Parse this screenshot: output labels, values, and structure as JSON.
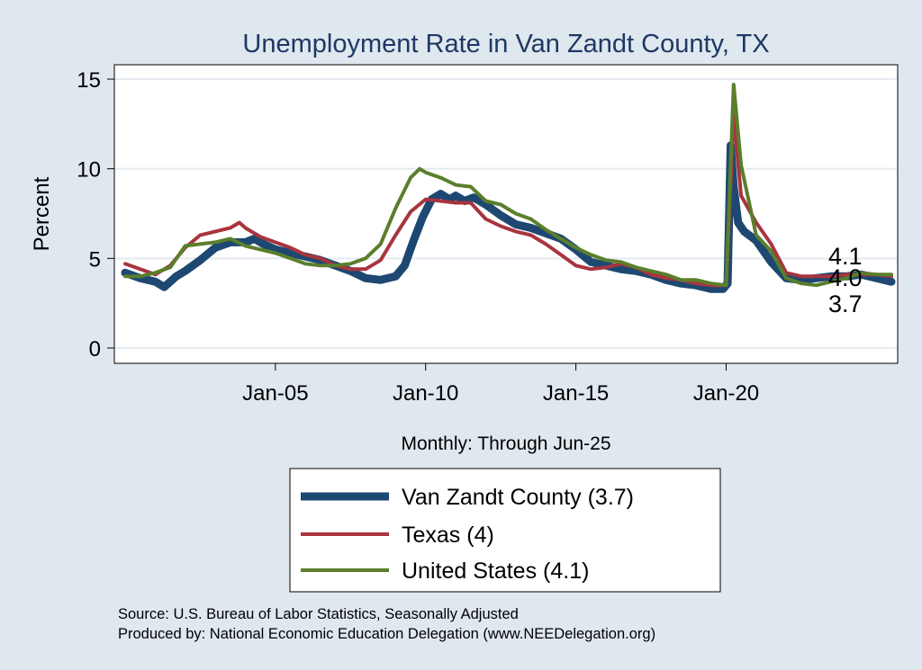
{
  "chart_data": {
    "type": "line",
    "title": "Unemployment Rate in Van Zandt  County, TX",
    "ylabel": "Percent",
    "xlabel": "Monthly: Through Jun-25",
    "ylim": [
      0,
      15
    ],
    "yticks": [
      0,
      5,
      10,
      15
    ],
    "xticks": [
      {
        "label": "Jan-05",
        "x": 2005.0
      },
      {
        "label": "Jan-10",
        "x": 2010.0
      },
      {
        "label": "Jan-15",
        "x": 2015.0
      },
      {
        "label": "Jan-20",
        "x": 2020.0
      }
    ],
    "x_range": [
      2000.0,
      2025.5
    ],
    "grid": true,
    "legend_position": "bottom",
    "end_labels": [
      "4.1",
      "4.0",
      "3.7"
    ],
    "series": [
      {
        "name": "Van Zandt  County (3.7)",
        "color": "#1d4872",
        "width": 9,
        "points": [
          [
            2000.0,
            4.2
          ],
          [
            2000.5,
            3.9
          ],
          [
            2001.0,
            3.7
          ],
          [
            2001.3,
            3.4
          ],
          [
            2001.7,
            4.0
          ],
          [
            2002.0,
            4.3
          ],
          [
            2002.5,
            4.9
          ],
          [
            2003.0,
            5.6
          ],
          [
            2003.5,
            5.9
          ],
          [
            2004.0,
            5.9
          ],
          [
            2004.3,
            6.1
          ],
          [
            2004.6,
            5.8
          ],
          [
            2005.0,
            5.5
          ],
          [
            2005.5,
            5.3
          ],
          [
            2006.0,
            5.1
          ],
          [
            2006.5,
            4.9
          ],
          [
            2007.0,
            4.6
          ],
          [
            2007.5,
            4.3
          ],
          [
            2008.0,
            3.9
          ],
          [
            2008.5,
            3.8
          ],
          [
            2009.0,
            4.0
          ],
          [
            2009.3,
            4.6
          ],
          [
            2009.6,
            6.0
          ],
          [
            2009.9,
            7.3
          ],
          [
            2010.2,
            8.3
          ],
          [
            2010.5,
            8.6
          ],
          [
            2010.8,
            8.3
          ],
          [
            2011.0,
            8.5
          ],
          [
            2011.3,
            8.2
          ],
          [
            2011.6,
            8.4
          ],
          [
            2012.0,
            8.0
          ],
          [
            2012.5,
            7.4
          ],
          [
            2013.0,
            6.9
          ],
          [
            2013.5,
            6.7
          ],
          [
            2014.0,
            6.4
          ],
          [
            2014.5,
            6.1
          ],
          [
            2015.0,
            5.5
          ],
          [
            2015.5,
            4.8
          ],
          [
            2016.0,
            4.6
          ],
          [
            2016.5,
            4.4
          ],
          [
            2017.0,
            4.3
          ],
          [
            2017.5,
            4.1
          ],
          [
            2018.0,
            3.8
          ],
          [
            2018.5,
            3.6
          ],
          [
            2019.0,
            3.5
          ],
          [
            2019.5,
            3.3
          ],
          [
            2019.9,
            3.3
          ],
          [
            2020.05,
            3.6
          ],
          [
            2020.15,
            11.3
          ],
          [
            2020.25,
            9.0
          ],
          [
            2020.4,
            7.0
          ],
          [
            2020.6,
            6.5
          ],
          [
            2021.0,
            6.0
          ],
          [
            2021.5,
            4.8
          ],
          [
            2022.0,
            3.9
          ],
          [
            2022.5,
            3.8
          ],
          [
            2023.0,
            3.9
          ],
          [
            2023.5,
            4.0
          ],
          [
            2024.0,
            4.0
          ],
          [
            2024.5,
            4.1
          ],
          [
            2025.0,
            3.9
          ],
          [
            2025.5,
            3.7
          ]
        ]
      },
      {
        "name": "Texas (4)",
        "color": "#a8343e",
        "width": 4,
        "points": [
          [
            2000.0,
            4.7
          ],
          [
            2000.5,
            4.4
          ],
          [
            2001.0,
            4.1
          ],
          [
            2001.5,
            4.6
          ],
          [
            2002.0,
            5.6
          ],
          [
            2002.5,
            6.3
          ],
          [
            2003.0,
            6.5
          ],
          [
            2003.5,
            6.7
          ],
          [
            2003.8,
            7.0
          ],
          [
            2004.0,
            6.7
          ],
          [
            2004.5,
            6.2
          ],
          [
            2005.0,
            5.9
          ],
          [
            2005.5,
            5.6
          ],
          [
            2006.0,
            5.2
          ],
          [
            2006.5,
            5.0
          ],
          [
            2007.0,
            4.6
          ],
          [
            2007.5,
            4.4
          ],
          [
            2008.0,
            4.4
          ],
          [
            2008.5,
            4.9
          ],
          [
            2009.0,
            6.3
          ],
          [
            2009.5,
            7.6
          ],
          [
            2010.0,
            8.3
          ],
          [
            2010.5,
            8.2
          ],
          [
            2011.0,
            8.1
          ],
          [
            2011.5,
            8.1
          ],
          [
            2012.0,
            7.2
          ],
          [
            2012.5,
            6.8
          ],
          [
            2013.0,
            6.5
          ],
          [
            2013.5,
            6.3
          ],
          [
            2014.0,
            5.8
          ],
          [
            2014.5,
            5.2
          ],
          [
            2015.0,
            4.6
          ],
          [
            2015.5,
            4.4
          ],
          [
            2016.0,
            4.5
          ],
          [
            2016.5,
            4.7
          ],
          [
            2017.0,
            4.5
          ],
          [
            2017.5,
            4.1
          ],
          [
            2018.0,
            3.9
          ],
          [
            2018.5,
            3.8
          ],
          [
            2019.0,
            3.6
          ],
          [
            2019.5,
            3.5
          ],
          [
            2020.0,
            3.5
          ],
          [
            2020.25,
            13.0
          ],
          [
            2020.5,
            8.5
          ],
          [
            2021.0,
            7.0
          ],
          [
            2021.5,
            5.8
          ],
          [
            2022.0,
            4.2
          ],
          [
            2022.5,
            4.0
          ],
          [
            2023.0,
            4.0
          ],
          [
            2023.5,
            4.0
          ],
          [
            2024.0,
            4.1
          ],
          [
            2024.5,
            4.1
          ],
          [
            2025.0,
            4.1
          ],
          [
            2025.5,
            4.0
          ]
        ]
      },
      {
        "name": "United States (4.1)",
        "color": "#5b7e2c",
        "width": 4,
        "points": [
          [
            2000.0,
            4.0
          ],
          [
            2000.5,
            4.0
          ],
          [
            2001.0,
            4.2
          ],
          [
            2001.5,
            4.5
          ],
          [
            2002.0,
            5.7
          ],
          [
            2002.5,
            5.8
          ],
          [
            2003.0,
            5.9
          ],
          [
            2003.5,
            6.1
          ],
          [
            2004.0,
            5.7
          ],
          [
            2004.5,
            5.5
          ],
          [
            2005.0,
            5.3
          ],
          [
            2005.5,
            5.0
          ],
          [
            2006.0,
            4.7
          ],
          [
            2006.5,
            4.6
          ],
          [
            2007.0,
            4.6
          ],
          [
            2007.5,
            4.7
          ],
          [
            2008.0,
            5.0
          ],
          [
            2008.5,
            5.8
          ],
          [
            2009.0,
            7.8
          ],
          [
            2009.5,
            9.5
          ],
          [
            2009.8,
            10.0
          ],
          [
            2010.0,
            9.8
          ],
          [
            2010.5,
            9.5
          ],
          [
            2011.0,
            9.1
          ],
          [
            2011.5,
            9.0
          ],
          [
            2012.0,
            8.2
          ],
          [
            2012.5,
            8.0
          ],
          [
            2013.0,
            7.5
          ],
          [
            2013.5,
            7.2
          ],
          [
            2014.0,
            6.6
          ],
          [
            2014.5,
            6.1
          ],
          [
            2015.0,
            5.6
          ],
          [
            2015.5,
            5.2
          ],
          [
            2016.0,
            4.9
          ],
          [
            2016.5,
            4.8
          ],
          [
            2017.0,
            4.5
          ],
          [
            2017.5,
            4.3
          ],
          [
            2018.0,
            4.1
          ],
          [
            2018.5,
            3.8
          ],
          [
            2019.0,
            3.8
          ],
          [
            2019.5,
            3.6
          ],
          [
            2020.0,
            3.5
          ],
          [
            2020.25,
            14.7
          ],
          [
            2020.5,
            10.2
          ],
          [
            2021.0,
            6.3
          ],
          [
            2021.5,
            5.4
          ],
          [
            2022.0,
            3.9
          ],
          [
            2022.5,
            3.6
          ],
          [
            2023.0,
            3.5
          ],
          [
            2023.5,
            3.7
          ],
          [
            2024.0,
            3.9
          ],
          [
            2024.5,
            4.2
          ],
          [
            2025.0,
            4.1
          ],
          [
            2025.5,
            4.1
          ]
        ]
      }
    ]
  },
  "notes": {
    "source": "Source: U.S. Bureau of Labor Statistics, Seasonally Adjusted",
    "produced": "Produced by: National Economic Education Delegation (www.NEEDelegation.org)"
  }
}
